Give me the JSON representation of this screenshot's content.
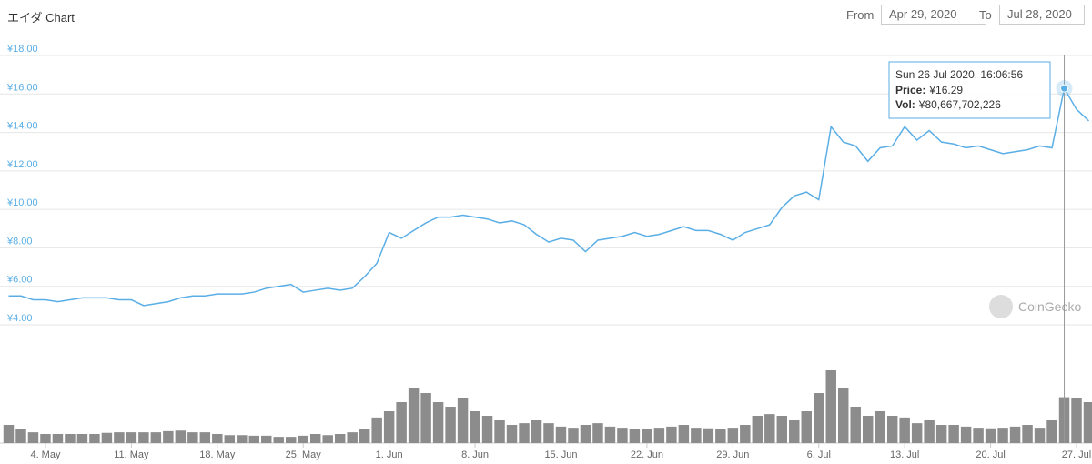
{
  "header": {
    "title": "エイダ Chart",
    "from_label": "From",
    "from_value": "Apr 29, 2020",
    "to_label": "To",
    "to_value": "Jul 28, 2020"
  },
  "watermark": "CoinGecko",
  "chart_data": {
    "type": "line",
    "x": [
      "2020-05-01",
      "2020-05-02",
      "2020-05-03",
      "2020-05-04",
      "2020-05-05",
      "2020-05-06",
      "2020-05-07",
      "2020-05-08",
      "2020-05-09",
      "2020-05-10",
      "2020-05-11",
      "2020-05-12",
      "2020-05-13",
      "2020-05-14",
      "2020-05-15",
      "2020-05-16",
      "2020-05-17",
      "2020-05-18",
      "2020-05-19",
      "2020-05-20",
      "2020-05-21",
      "2020-05-22",
      "2020-05-23",
      "2020-05-24",
      "2020-05-25",
      "2020-05-26",
      "2020-05-27",
      "2020-05-28",
      "2020-05-29",
      "2020-05-30",
      "2020-05-31",
      "2020-06-01",
      "2020-06-02",
      "2020-06-03",
      "2020-06-04",
      "2020-06-05",
      "2020-06-06",
      "2020-06-07",
      "2020-06-08",
      "2020-06-09",
      "2020-06-10",
      "2020-06-11",
      "2020-06-12",
      "2020-06-13",
      "2020-06-14",
      "2020-06-15",
      "2020-06-16",
      "2020-06-17",
      "2020-06-18",
      "2020-06-19",
      "2020-06-20",
      "2020-06-21",
      "2020-06-22",
      "2020-06-23",
      "2020-06-24",
      "2020-06-25",
      "2020-06-26",
      "2020-06-27",
      "2020-06-28",
      "2020-06-29",
      "2020-06-30",
      "2020-07-01",
      "2020-07-02",
      "2020-07-03",
      "2020-07-04",
      "2020-07-05",
      "2020-07-06",
      "2020-07-07",
      "2020-07-08",
      "2020-07-09",
      "2020-07-10",
      "2020-07-11",
      "2020-07-12",
      "2020-07-13",
      "2020-07-14",
      "2020-07-15",
      "2020-07-16",
      "2020-07-17",
      "2020-07-18",
      "2020-07-19",
      "2020-07-20",
      "2020-07-21",
      "2020-07-22",
      "2020-07-23",
      "2020-07-24",
      "2020-07-25",
      "2020-07-26",
      "2020-07-27",
      "2020-07-28"
    ],
    "series": [
      {
        "color": "#5aaee6",
        "values": [
          5.5,
          5.5,
          5.3,
          5.3,
          5.2,
          5.3,
          5.4,
          5.4,
          5.4,
          5.3,
          5.3,
          5.0,
          5.1,
          5.2,
          5.4,
          5.5,
          5.5,
          5.6,
          5.6,
          5.6,
          5.7,
          5.9,
          6.0,
          6.1,
          5.7,
          5.8,
          5.9,
          5.8,
          5.9,
          6.5,
          7.2,
          8.8,
          8.5,
          8.9,
          9.3,
          9.6,
          9.6,
          9.7,
          9.6,
          9.5,
          9.3,
          9.4,
          9.2,
          8.7,
          8.3,
          8.5,
          8.4,
          7.8,
          8.4,
          8.5,
          8.6,
          8.8,
          8.6,
          8.7,
          8.9,
          9.1,
          8.9,
          8.9,
          8.7,
          8.4,
          8.8,
          9.0,
          9.2,
          10.1,
          10.7,
          10.9,
          10.5,
          14.3,
          13.5,
          13.3,
          12.5,
          13.2,
          13.3,
          14.3,
          13.6,
          14.1,
          13.5,
          13.4,
          13.2,
          13.3,
          13.1,
          12.9,
          13.0,
          13.1,
          13.3,
          13.2,
          16.29,
          15.2,
          14.6
        ]
      },
      {
        "type": "bar",
        "axis": "y2",
        "color": "#8c8c8c",
        "values": [
          32000000000.0,
          24000000000.0,
          19000000000.0,
          16000000000.0,
          16000000000.0,
          16000000000.0,
          16000000000.0,
          16000000000.0,
          18000000000.0,
          19000000000.0,
          19000000000.0,
          19000000000.0,
          19000000000.0,
          21000000000.0,
          22000000000.0,
          19000000000.0,
          19000000000.0,
          16000000000.0,
          14000000000.0,
          14000000000.0,
          13000000000.0,
          13000000000.0,
          11000000000.0,
          11000000000.0,
          13000000000.0,
          16000000000.0,
          14000000000.0,
          16000000000.0,
          19000000000.0,
          24000000000.0,
          45000000000.0,
          56000000000.0,
          72000000000.0,
          96000000000.0,
          88000000000.0,
          72000000000.0,
          64000000000.0,
          80000000000.0,
          56000000000.0,
          48000000000.0,
          40000000000.0,
          32000000000.0,
          35000000000.0,
          40000000000.0,
          35000000000.0,
          29000000000.0,
          27000000000.0,
          32000000000.0,
          35000000000.0,
          29000000000.0,
          27000000000.0,
          24000000000.0,
          24000000000.0,
          27000000000.0,
          29000000000.0,
          32000000000.0,
          27000000000.0,
          26000000000.0,
          24000000000.0,
          27000000000.0,
          32000000000.0,
          48000000000.0,
          51000000000.0,
          48000000000.0,
          40000000000.0,
          56000000000.0,
          88000000000.0,
          128000000000.0,
          96000000000.0,
          64000000000.0,
          48000000000.0,
          56000000000.0,
          48000000000.0,
          45000000000.0,
          35000000000.0,
          40000000000.0,
          32000000000.0,
          32000000000.0,
          29000000000.0,
          27000000000.0,
          26000000000.0,
          27000000000.0,
          29000000000.0,
          32000000000.0,
          27000000000.0,
          40000000000.0,
          80667702226,
          80000000000.0,
          72000000000.0
        ]
      }
    ],
    "xlim": [
      "2020-05-01",
      "2020-07-28"
    ],
    "xticks": [
      {
        "value": "2020-05-04",
        "label": "4. May"
      },
      {
        "value": "2020-05-11",
        "label": "11. May"
      },
      {
        "value": "2020-05-18",
        "label": "18. May"
      },
      {
        "value": "2020-05-25",
        "label": "25. May"
      },
      {
        "value": "2020-06-01",
        "label": "1. Jun"
      },
      {
        "value": "2020-06-08",
        "label": "8. Jun"
      },
      {
        "value": "2020-06-15",
        "label": "15. Jun"
      },
      {
        "value": "2020-06-22",
        "label": "22. Jun"
      },
      {
        "value": "2020-06-29",
        "label": "29. Jun"
      },
      {
        "value": "2020-07-06",
        "label": "6. Jul"
      },
      {
        "value": "2020-07-13",
        "label": "13. Jul"
      },
      {
        "value": "2020-07-20",
        "label": "20. Jul"
      },
      {
        "value": "2020-07-27",
        "label": "27. Jul"
      }
    ],
    "ylim": [
      4,
      18
    ],
    "yticks": [
      {
        "value": 4,
        "label": "¥4.00"
      },
      {
        "value": 6,
        "label": "¥6.00"
      },
      {
        "value": 8,
        "label": "¥8.00"
      },
      {
        "value": 10,
        "label": "¥10.00"
      },
      {
        "value": 12,
        "label": "¥12.00"
      },
      {
        "value": 14,
        "label": "¥14.00"
      },
      {
        "value": 16,
        "label": "¥16.00"
      },
      {
        "value": 18,
        "label": "¥18.00"
      }
    ],
    "y2lim": [
      0,
      176000000000.0
    ],
    "grid": true,
    "tooltip": {
      "index": 86,
      "title": "Sun 26 Jul 2020, 16:06:56",
      "rows": [
        [
          "Price:",
          "¥16.29"
        ],
        [
          "Vol:",
          "¥80,667,702,226"
        ]
      ]
    }
  }
}
